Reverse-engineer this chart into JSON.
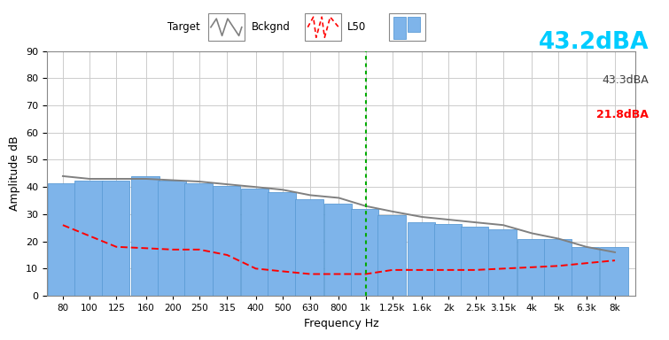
{
  "freq_labels": [
    "80",
    "100",
    "125",
    "160",
    "200",
    "250",
    "315",
    "400",
    "500",
    "630",
    "800",
    "1k",
    "1.25k",
    "1.6k",
    "2k",
    "2.5k",
    "3.15k",
    "4k",
    "5k",
    "6.3k",
    "8k"
  ],
  "bar_centers": [
    80,
    100,
    125,
    160,
    200,
    250,
    315,
    400,
    500,
    630,
    800,
    1000,
    1250,
    1600,
    2000,
    2500,
    3150,
    4000,
    5000,
    6300,
    8000
  ],
  "bar_heights": [
    41.5,
    42.5,
    42.5,
    44.0,
    42.5,
    41.5,
    40.5,
    39.5,
    38.0,
    35.5,
    34.0,
    32.0,
    29.5,
    27.0,
    26.5,
    25.5,
    24.5,
    21.0,
    21.0,
    18.0,
    18.0
  ],
  "target_x": [
    80,
    100,
    125,
    160,
    200,
    250,
    315,
    400,
    500,
    630,
    800,
    1000,
    1250,
    1600,
    2000,
    2500,
    3150,
    4000,
    5000,
    6300,
    8000
  ],
  "target_y": [
    44,
    43,
    43,
    43,
    42.5,
    42,
    41,
    40,
    39,
    37,
    36,
    33,
    31,
    29,
    28,
    27,
    26,
    23,
    21,
    18,
    16
  ],
  "bckgnd_x": [
    80,
    100,
    125,
    160,
    200,
    250,
    315,
    400,
    500,
    630,
    800,
    1000,
    1250,
    1600,
    2000,
    2500,
    3150,
    4000,
    5000,
    6300,
    8000
  ],
  "bckgnd_y": [
    26,
    22,
    18,
    17.5,
    17,
    17,
    15,
    10,
    9,
    8,
    8,
    8,
    9.5,
    9.5,
    9.5,
    9.5,
    10,
    10.5,
    11,
    12,
    13
  ],
  "bar_color": "#7EB4EA",
  "bar_edge_color": "#5B9BD5",
  "target_color": "#808080",
  "bckgnd_color": "#FF0000",
  "vline_x": 1000,
  "vline_color": "#00AA00",
  "bg_color": "#FFFFFF",
  "grid_color": "#CCCCCC",
  "ylabel": "Amplitude dB",
  "xlabel": "Frequency Hz",
  "ylim": [
    0,
    90
  ],
  "yticks": [
    0,
    10,
    20,
    30,
    40,
    50,
    60,
    70,
    80,
    90
  ],
  "big_label": "43.2dBA",
  "big_label_color": "#00CCFF",
  "label2": "43.3dBA",
  "label2_color": "#404040",
  "label3": "21.8dBA",
  "label3_color": "#FF0000",
  "figw": 7.55,
  "figh": 3.84,
  "dpi": 100
}
